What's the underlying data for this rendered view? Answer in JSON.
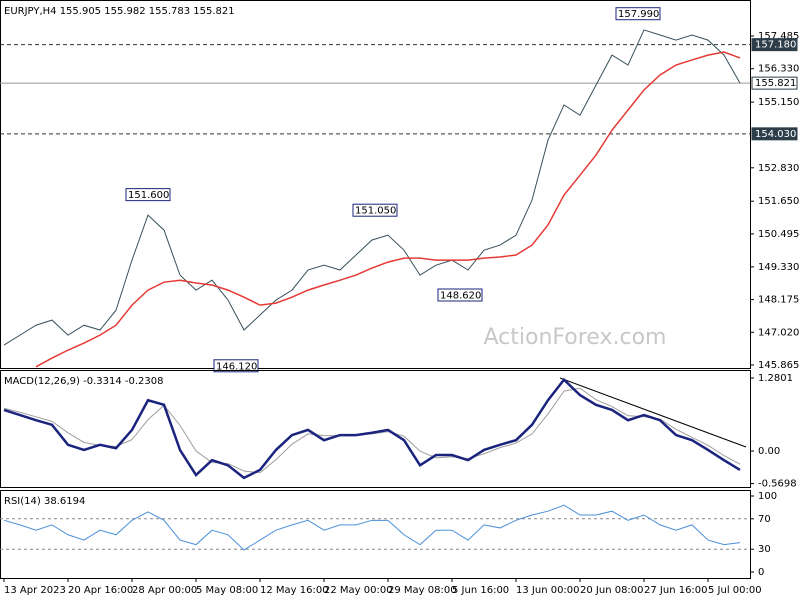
{
  "watermark": "ActionForex.com",
  "chart_data": [
    {
      "type": "line",
      "title": "EURJPY,H4  155.905 155.982 155.783 155.821",
      "ylim": [
        145.759,
        158.757
      ],
      "yticks": [
        157.485,
        {
          "value": 156.33,
          "label": "156.330"
        },
        {
          "value": 155.15,
          "label": "155.150"
        },
        {
          "value": 152.83,
          "label": "152.830"
        },
        {
          "value": 151.65,
          "label": "151.650"
        },
        150.495,
        {
          "value": 149.33,
          "label": "149.330"
        },
        148.175,
        {
          "value": 147.02,
          "label": "147.020"
        },
        145.865
      ],
      "series": [
        {
          "color": "#37505c",
          "values": [
            146.57,
            146.92,
            147.27,
            147.45,
            146.92,
            147.27,
            147.1,
            147.8,
            149.57,
            151.16,
            150.63,
            149.04,
            148.51,
            148.86,
            148.16,
            147.1,
            147.63,
            148.16,
            148.51,
            149.22,
            149.39,
            149.22,
            149.75,
            150.28,
            150.45,
            149.92,
            149.04,
            149.39,
            149.57,
            149.22,
            149.92,
            150.1,
            150.45,
            151.69,
            153.81,
            155.05,
            154.69,
            155.75,
            156.81,
            156.46,
            157.7,
            157.52,
            157.34,
            157.52,
            157.34,
            156.81,
            155.821
          ]
        },
        {
          "color": "#e53935",
          "values": [
            null,
            null,
            145.8,
            146.11,
            146.39,
            146.64,
            146.92,
            147.27,
            147.98,
            148.51,
            148.79,
            148.86,
            148.76,
            148.69,
            148.51,
            148.26,
            147.98,
            148.05,
            148.26,
            148.51,
            148.69,
            148.86,
            149.04,
            149.29,
            149.5,
            149.64,
            149.64,
            149.57,
            149.57,
            149.57,
            149.64,
            149.68,
            149.75,
            150.1,
            150.81,
            151.87,
            152.57,
            153.28,
            154.16,
            154.87,
            155.58,
            156.11,
            156.46,
            156.64,
            156.81,
            156.92,
            156.71
          ]
        }
      ],
      "levels": [
        {
          "value": 157.18,
          "label": "157.180",
          "style": "dashed"
        },
        {
          "value": 154.03,
          "label": "154.030",
          "style": "dashed"
        },
        {
          "value": 155.821,
          "label": "155.821",
          "style": "solid"
        }
      ],
      "annotations": [
        {
          "value": 157.99,
          "label": "157.990"
        },
        {
          "value": 151.6,
          "label": "151.600"
        },
        {
          "value": 151.05,
          "label": "151.050"
        },
        {
          "value": 148.62,
          "label": "148.620"
        },
        {
          "value": 146.12,
          "label": "146.120"
        }
      ]
    },
    {
      "type": "line",
      "title": "MACD(12,26,9) -0.3314 -0.2308",
      "ylim": [
        -0.63,
        1.42
      ],
      "yticks": [
        1.2801,
        {
          "value": 0,
          "label": "0.00"
        },
        -0.5698
      ],
      "series": [
        {
          "color": "#9e9e9e",
          "values": [
            0.75,
            0.68,
            0.6,
            0.52,
            0.32,
            0.15,
            0.1,
            0.08,
            0.2,
            0.55,
            0.8,
            0.45,
            0.0,
            -0.2,
            -0.22,
            -0.35,
            -0.38,
            -0.15,
            0.12,
            0.3,
            0.27,
            0.27,
            0.28,
            0.3,
            0.34,
            0.26,
            0.0,
            -0.12,
            -0.1,
            -0.13,
            -0.05,
            0.06,
            0.14,
            0.3,
            0.65,
            1.05,
            1.1,
            0.9,
            0.78,
            0.62,
            0.6,
            0.56,
            0.38,
            0.24,
            0.1,
            -0.08,
            -0.2308
          ]
        },
        {
          "color": "#1a237e",
          "values": [
            0.72,
            0.63,
            0.54,
            0.46,
            0.11,
            0.02,
            0.11,
            0.05,
            0.37,
            0.89,
            0.81,
            0.02,
            -0.42,
            -0.16,
            -0.25,
            -0.47,
            -0.33,
            0.02,
            0.28,
            0.37,
            0.19,
            0.28,
            0.28,
            0.32,
            0.37,
            0.19,
            -0.25,
            -0.07,
            -0.07,
            -0.16,
            0.02,
            0.11,
            0.19,
            0.46,
            0.89,
            1.25,
            0.98,
            0.81,
            0.72,
            0.54,
            0.63,
            0.54,
            0.28,
            0.19,
            0.02,
            -0.16,
            -0.3314
          ]
        }
      ]
    },
    {
      "type": "line",
      "title": "RSI(14) 38.6194",
      "ylim": [
        -7.9,
        107.9
      ],
      "yticks": [
        100,
        70,
        30,
        0
      ],
      "levels": [
        70,
        30
      ],
      "categories": [
        "13 Apr 2023",
        null,
        null,
        null,
        "20 Apr 16:00",
        null,
        null,
        null,
        "28 Apr 00:00",
        null,
        null,
        null,
        "5 May 08:00",
        null,
        null,
        null,
        "12 May 16:00",
        null,
        null,
        null,
        "22 May 00:00",
        null,
        null,
        null,
        "29 May 08:00",
        null,
        null,
        null,
        "5 Jun 16:00",
        null,
        null,
        null,
        "13 Jun 00:00",
        null,
        null,
        null,
        "20 Jun 08:00",
        null,
        null,
        null,
        "27 Jun 16:00",
        null,
        null,
        null,
        "5 Jul 00:00",
        null,
        null
      ],
      "series": [
        {
          "color": "#4a90d9",
          "values": [
            68,
            62,
            55,
            62,
            49,
            42,
            55,
            49,
            68,
            79,
            68,
            42,
            36,
            55,
            49,
            29,
            42,
            55,
            62,
            68,
            55,
            62,
            62,
            68,
            68,
            49,
            36,
            55,
            55,
            42,
            62,
            58,
            68,
            75,
            80,
            88,
            75,
            75,
            80,
            68,
            75,
            62,
            55,
            62,
            42,
            36,
            38.6194
          ]
        }
      ]
    }
  ]
}
